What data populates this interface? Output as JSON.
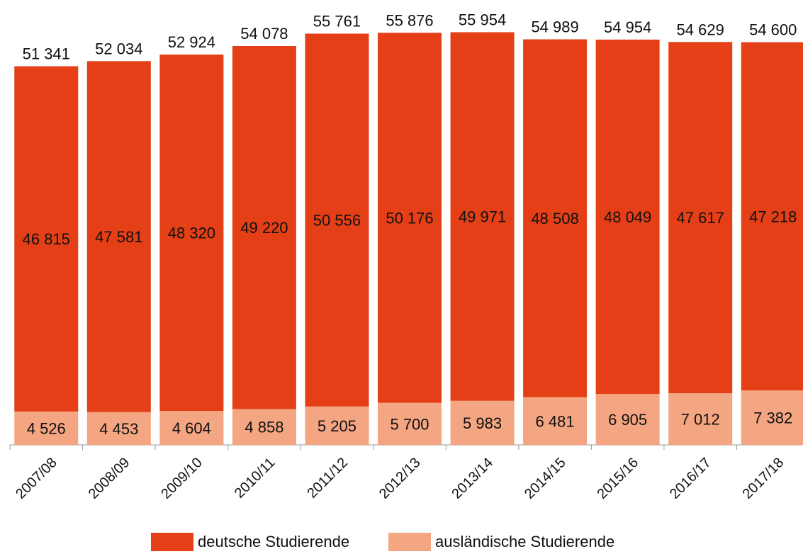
{
  "chart_data": {
    "type": "bar",
    "stacked": true,
    "categories": [
      "2007/08",
      "2008/09",
      "2009/10",
      "2010/11",
      "2011/12",
      "2012/13",
      "2013/14",
      "2014/15",
      "2015/16",
      "2016/17",
      "2017/18"
    ],
    "series": [
      {
        "name": "ausländische Studierende",
        "color": "#f4a582",
        "values": [
          4526,
          4453,
          4604,
          4858,
          5205,
          5700,
          5983,
          6481,
          6905,
          7012,
          7382
        ],
        "labels": [
          "4 526",
          "4 453",
          "4 604",
          "4 858",
          "5 205",
          "5 700",
          "5 983",
          "6 481",
          "6 905",
          "7 012",
          "7 382"
        ]
      },
      {
        "name": "deutsche Studierende",
        "color": "#e43f16",
        "values": [
          46815,
          47581,
          48320,
          49220,
          50556,
          50176,
          49971,
          48508,
          48049,
          47617,
          47218
        ],
        "labels": [
          "46 815",
          "47 581",
          "48 320",
          "49 220",
          "50 556",
          "50 176",
          "49 971",
          "48 508",
          "48 049",
          "47 617",
          "47 218"
        ]
      }
    ],
    "totals": [
      51341,
      52034,
      52924,
      54078,
      55761,
      55876,
      55954,
      54989,
      54954,
      54629,
      54600
    ],
    "total_labels": [
      "51 341",
      "52 034",
      "52 924",
      "54 078",
      "55 761",
      "55 876",
      "55 954",
      "54 989",
      "54 954",
      "54 629",
      "54 600"
    ],
    "ylim": [
      0,
      56000
    ],
    "grid": false,
    "legend_position": "bottom"
  },
  "legend": {
    "items": [
      {
        "label": "deutsche Studierende",
        "color": "#e43f16"
      },
      {
        "label": "ausländische Studierende",
        "color": "#f4a582"
      }
    ]
  }
}
